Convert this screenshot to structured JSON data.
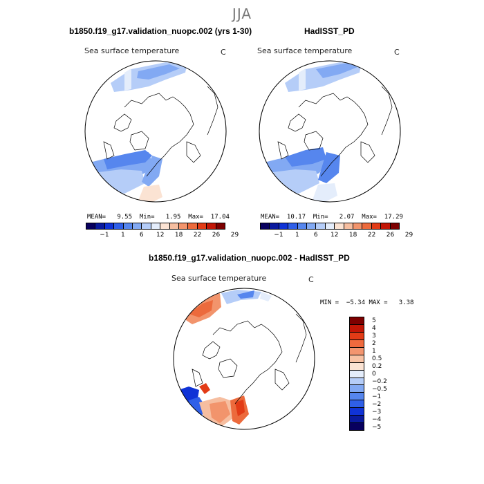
{
  "figure": {
    "season": "JJA",
    "left_panel": {
      "title": "b1850.f19_g17.validation_nuopc.002 (yrs 1-30)",
      "subtitle": "Sea surface temperature",
      "unit": "C",
      "stats": "MEAN=   9.55  Min=   1.95  Max=  17.04",
      "colorbar_labels": [
        "−1",
        "1",
        "6",
        "12",
        "18",
        "22",
        "26",
        "29"
      ]
    },
    "right_panel": {
      "title": "HadISST_PD",
      "subtitle": "Sea surface temperature",
      "unit": "C",
      "stats": "MEAN=  10.17  Min=   2.07  Max=  17.29",
      "colorbar_labels": [
        "−1",
        "1",
        "6",
        "12",
        "18",
        "22",
        "26",
        "29"
      ]
    },
    "diff_panel": {
      "title": "b1850.f19_g17.validation_nuopc.002 - HadISST_PD",
      "subtitle": "Sea surface temperature",
      "unit": "C",
      "stats": "MIN =  −5.34 MAX =   3.38",
      "colorbar_labels": [
        "5",
        "4",
        "3",
        "2",
        "1",
        "0.5",
        "0.2",
        "0",
        "−0.2",
        "−0.5",
        "−1",
        "−2",
        "−3",
        "−4",
        "−5"
      ]
    }
  },
  "colors": {
    "abs_scale": [
      "#08005e",
      "#0a1a9e",
      "#1033d6",
      "#2f5fe8",
      "#5686ee",
      "#82a9f3",
      "#b5cdf8",
      "#e4edfb",
      "#fbe3d3",
      "#f6bea0",
      "#f2946c",
      "#ec6a3c",
      "#e23b16",
      "#c21606",
      "#7d0000"
    ],
    "diff_scale": [
      "#7d0000",
      "#c21606",
      "#e23b16",
      "#ef6a3e",
      "#f3956f",
      "#f8c2a4",
      "#fbe3d3",
      "#e4edfb",
      "#b5cdf8",
      "#82a9f3",
      "#5686ee",
      "#2f5fe8",
      "#1033d6",
      "#0a1a9e",
      "#08005e"
    ]
  }
}
